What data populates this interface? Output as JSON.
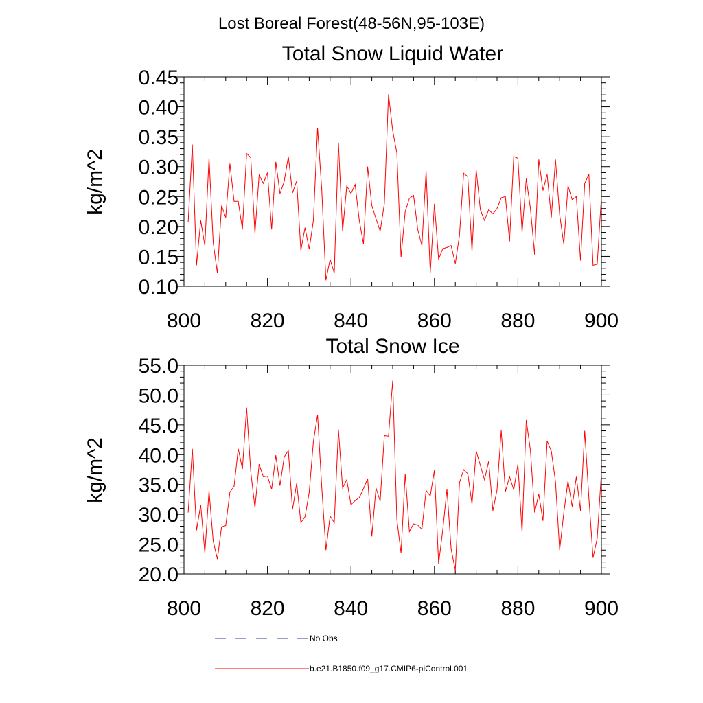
{
  "figure_title": "Lost Boreal Forest(48-56N,95-103E)",
  "chart_data": [
    {
      "type": "line",
      "title": "Total Snow Liquid Water",
      "xlabel": "",
      "ylabel": "kg/m^2",
      "xlim": [
        800,
        900
      ],
      "ylim": [
        0.1,
        0.45
      ],
      "x_ticks": [
        "800",
        "820",
        "840",
        "860",
        "880",
        "900"
      ],
      "y_ticks": [
        "0.10",
        "0.15",
        "0.20",
        "0.25",
        "0.30",
        "0.35",
        "0.40",
        "0.45"
      ],
      "x": [
        801,
        802,
        803,
        804,
        805,
        806,
        807,
        808,
        809,
        810,
        811,
        812,
        813,
        814,
        815,
        816,
        817,
        818,
        819,
        820,
        821,
        822,
        823,
        824,
        825,
        826,
        827,
        828,
        829,
        830,
        831,
        832,
        833,
        834,
        835,
        836,
        837,
        838,
        839,
        840,
        841,
        842,
        843,
        844,
        845,
        846,
        847,
        848,
        849,
        850,
        851,
        852,
        853,
        854,
        855,
        856,
        857,
        858,
        859,
        860,
        861,
        862,
        863,
        864,
        865,
        866,
        867,
        868,
        869,
        870,
        871,
        872,
        873,
        874,
        875,
        876,
        877,
        878,
        879,
        880,
        881,
        882,
        883,
        884,
        885,
        886,
        887,
        888,
        889,
        890,
        891,
        892,
        893,
        894,
        895,
        896,
        897,
        898,
        899,
        900
      ],
      "series": [
        {
          "name": "b.e21.B1850.f09_g17.CMIP6-piControl.001",
          "color": "#ff0000",
          "values": [
            0.207,
            0.337,
            0.135,
            0.21,
            0.168,
            0.315,
            0.173,
            0.122,
            0.235,
            0.215,
            0.305,
            0.242,
            0.242,
            0.195,
            0.322,
            0.315,
            0.188,
            0.286,
            0.272,
            0.29,
            0.195,
            0.308,
            0.255,
            0.275,
            0.317,
            0.256,
            0.276,
            0.16,
            0.198,
            0.162,
            0.21,
            0.365,
            0.262,
            0.11,
            0.145,
            0.122,
            0.34,
            0.192,
            0.268,
            0.255,
            0.27,
            0.21,
            0.171,
            0.3,
            0.235,
            0.213,
            0.192,
            0.238,
            0.421,
            0.36,
            0.323,
            0.149,
            0.225,
            0.247,
            0.252,
            0.195,
            0.168,
            0.293,
            0.122,
            0.238,
            0.145,
            0.163,
            0.165,
            0.168,
            0.138,
            0.185,
            0.289,
            0.283,
            0.158,
            0.295,
            0.228,
            0.21,
            0.228,
            0.221,
            0.23,
            0.248,
            0.25,
            0.175,
            0.317,
            0.314,
            0.19,
            0.28,
            0.23,
            0.153,
            0.312,
            0.26,
            0.287,
            0.215,
            0.312,
            0.22,
            0.17,
            0.268,
            0.245,
            0.25,
            0.143,
            0.272,
            0.287,
            0.135,
            0.137,
            0.25
          ]
        }
      ]
    },
    {
      "type": "line",
      "title": "Total Snow Ice",
      "xlabel": "",
      "ylabel": "kg/m^2",
      "xlim": [
        800,
        900
      ],
      "ylim": [
        20.0,
        55.0
      ],
      "x_ticks": [
        "800",
        "820",
        "840",
        "860",
        "880",
        "900"
      ],
      "y_ticks": [
        "20.0",
        "25.0",
        "30.0",
        "35.0",
        "40.0",
        "45.0",
        "50.0",
        "55.0"
      ],
      "x": [
        801,
        802,
        803,
        804,
        805,
        806,
        807,
        808,
        809,
        810,
        811,
        812,
        813,
        814,
        815,
        816,
        817,
        818,
        819,
        820,
        821,
        822,
        823,
        824,
        825,
        826,
        827,
        828,
        829,
        830,
        831,
        832,
        833,
        834,
        835,
        836,
        837,
        838,
        839,
        840,
        841,
        842,
        843,
        844,
        845,
        846,
        847,
        848,
        849,
        850,
        851,
        852,
        853,
        854,
        855,
        856,
        857,
        858,
        859,
        860,
        861,
        862,
        863,
        864,
        865,
        866,
        867,
        868,
        869,
        870,
        871,
        872,
        873,
        874,
        875,
        876,
        877,
        878,
        879,
        880,
        881,
        882,
        883,
        884,
        885,
        886,
        887,
        888,
        889,
        890,
        891,
        892,
        893,
        894,
        895,
        896,
        897,
        898,
        899,
        900
      ],
      "series": [
        {
          "name": "b.e21.B1850.f09_g17.CMIP6-piControl.001",
          "color": "#ff0000",
          "values": [
            30.3,
            41.0,
            27.3,
            31.6,
            23.5,
            34.0,
            25.5,
            22.5,
            27.9,
            28.1,
            33.7,
            34.7,
            41.0,
            37.6,
            47.9,
            37.1,
            31.1,
            38.4,
            36.3,
            36.4,
            34.2,
            39.9,
            34.8,
            39.6,
            40.7,
            30.8,
            35.2,
            28.6,
            29.6,
            33.7,
            42.2,
            46.7,
            34.6,
            24.0,
            29.7,
            28.6,
            44.2,
            34.4,
            35.8,
            31.6,
            32.3,
            32.8,
            34.3,
            36.0,
            26.3,
            34.4,
            32.2,
            43.2,
            43.1,
            52.4,
            29.1,
            23.5,
            36.8,
            27.1,
            28.4,
            28.2,
            27.5,
            34.0,
            33.1,
            37.4,
            21.7,
            27.4,
            34.2,
            24.2,
            20.6,
            35.3,
            37.5,
            36.8,
            31.7,
            40.6,
            38.2,
            35.8,
            38.9,
            30.6,
            34.1,
            44.1,
            33.8,
            36.3,
            34.1,
            38.4,
            27.0,
            45.8,
            40.7,
            30.3,
            33.4,
            28.9,
            42.3,
            40.6,
            35.5,
            24.0,
            30.3,
            35.6,
            31.3,
            36.3,
            30.6,
            44.0,
            32.8,
            22.7,
            26.0,
            37.0
          ]
        }
      ]
    }
  ],
  "legend": [
    {
      "label": "No Obs",
      "style": "dashed",
      "color": "#2a3f8f"
    },
    {
      "label": "b.e21.B1850.f09_g17.CMIP6-piControl.001",
      "style": "solid",
      "color": "#ff0000"
    }
  ]
}
